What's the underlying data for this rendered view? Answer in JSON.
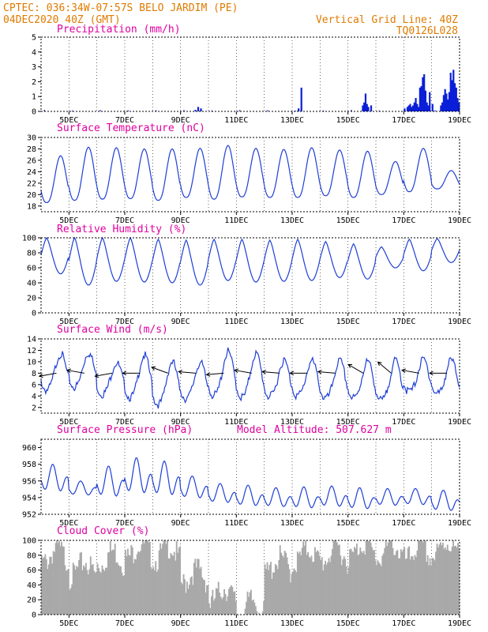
{
  "header": {
    "line1_left": "CPTEC:   036:34W-07:57S  BELO JARDIM (PE)",
    "line2_left": "04DEC2020 40Z (GMT)",
    "line1_right": "Vertical Grid Line: 40Z",
    "line2_right": "TQ0126L028"
  },
  "colors": {
    "header": "#e07b00",
    "title": "#e000a0",
    "series": "#1f3fd6",
    "cloud": "#a9a9a9",
    "bars": "#0a1fd8"
  },
  "chart_data": [
    {
      "id": "precip",
      "type": "bar",
      "title": "Precipitation (mm/h)",
      "ylim": [
        0,
        5
      ],
      "yticks": [
        0,
        1,
        2,
        3,
        4,
        5
      ],
      "x_tick_labels": [
        "5DEC",
        "7DEC",
        "9DEC",
        "11DEC",
        "13DEC",
        "15DEC",
        "17DEC",
        "19DEC"
      ],
      "x_unit": "days since 04DEC2020 00Z",
      "xlim": [
        0,
        15
      ],
      "points": [
        [
          5.5,
          0.1
        ],
        [
          5.6,
          0.3
        ],
        [
          5.7,
          0.2
        ],
        [
          9.3,
          1.6
        ],
        [
          9.2,
          0.2
        ],
        [
          11.5,
          0.4
        ],
        [
          11.55,
          0.6
        ],
        [
          11.6,
          1.2
        ],
        [
          11.65,
          0.5
        ],
        [
          11.7,
          0.3
        ],
        [
          11.8,
          0.4
        ],
        [
          13.0,
          0.2
        ],
        [
          13.1,
          0.3
        ],
        [
          13.15,
          0.4
        ],
        [
          13.2,
          0.5
        ],
        [
          13.25,
          0.3
        ],
        [
          13.3,
          0.4
        ],
        [
          13.35,
          0.6
        ],
        [
          13.4,
          0.9
        ],
        [
          13.45,
          0.5
        ],
        [
          13.5,
          0.3
        ],
        [
          13.55,
          1.6
        ],
        [
          13.6,
          1.7
        ],
        [
          13.65,
          2.3
        ],
        [
          13.7,
          2.5
        ],
        [
          13.75,
          1.4
        ],
        [
          13.8,
          0.6
        ],
        [
          13.85,
          0.4
        ],
        [
          13.9,
          1.3
        ],
        [
          14.0,
          0.5
        ],
        [
          14.3,
          0.4
        ],
        [
          14.35,
          0.6
        ],
        [
          14.4,
          1.1
        ],
        [
          14.45,
          1.5
        ],
        [
          14.5,
          1.2
        ],
        [
          14.55,
          0.8
        ],
        [
          14.6,
          1.3
        ],
        [
          14.65,
          2.6
        ],
        [
          14.7,
          2.1
        ],
        [
          14.75,
          2.8
        ],
        [
          14.8,
          1.9
        ],
        [
          14.85,
          1.6
        ],
        [
          14.9,
          0.9
        ],
        [
          14.95,
          0.6
        ]
      ]
    },
    {
      "id": "temp",
      "type": "line",
      "title": "Surface Temperature (nC)",
      "ylim": [
        17,
        30
      ],
      "yticks": [
        18,
        20,
        22,
        24,
        26,
        28,
        30
      ],
      "x_tick_labels": [
        "5DEC",
        "7DEC",
        "9DEC",
        "11DEC",
        "13DEC",
        "15DEC",
        "17DEC",
        "19DEC"
      ],
      "x_unit": "days since 04DEC2020 00Z",
      "xlim": [
        0,
        15
      ],
      "daily_min": [
        18.6,
        19.0,
        19.2,
        19.3,
        19.0,
        19.5,
        19.2,
        19.6,
        19.5,
        19.5,
        19.8,
        19.5,
        20.0,
        20.5,
        21.0
      ],
      "daily_max": [
        26.8,
        28.3,
        28.2,
        28.0,
        28.0,
        28.1,
        28.6,
        28.1,
        27.9,
        28.2,
        27.8,
        27.6,
        25.8,
        28.1,
        24.2
      ]
    },
    {
      "id": "rh",
      "type": "line",
      "title": "Relative Humidity (%)",
      "ylim": [
        0,
        100
      ],
      "yticks": [
        0,
        20,
        40,
        60,
        80,
        100
      ],
      "x_tick_labels": [
        "5DEC",
        "7DEC",
        "9DEC",
        "11DEC",
        "13DEC",
        "15DEC",
        "17DEC",
        "19DEC"
      ],
      "x_unit": "days since 04DEC2020 00Z",
      "xlim": [
        0,
        15
      ],
      "daily_min": [
        52,
        37,
        42,
        41,
        40,
        37,
        43,
        41,
        42,
        43,
        47,
        45,
        60,
        56,
        67
      ],
      "daily_max": [
        100,
        100,
        100,
        100,
        98,
        97,
        98,
        98,
        97,
        98,
        95,
        92,
        88,
        98,
        99
      ]
    },
    {
      "id": "wind",
      "type": "line",
      "title": "Surface Wind (m/s)",
      "ylim": [
        1,
        14
      ],
      "yticks": [
        2,
        4,
        6,
        8,
        10,
        12,
        14
      ],
      "x_tick_labels": [
        "5DEC",
        "7DEC",
        "9DEC",
        "11DEC",
        "13DEC",
        "15DEC",
        "17DEC",
        "19DEC"
      ],
      "x_unit": "days since 04DEC2020 00Z",
      "xlim": [
        0,
        15
      ],
      "daily_min": [
        5.5,
        6.0,
        4.8,
        4.2,
        3.0,
        4.0,
        4.5,
        4.2,
        4.3,
        4.5,
        4.0,
        4.0,
        3.6,
        5.2,
        4.8
      ],
      "daily_max": [
        11.8,
        12.0,
        10.2,
        11.5,
        10.4,
        10.2,
        12.1,
        11.8,
        10.6,
        10.5,
        10.5,
        10.4,
        10.5,
        10.7,
        10.6
      ],
      "arrows_deg_from": [
        80,
        100,
        80,
        90,
        110,
        95,
        85,
        100,
        95,
        90,
        95,
        120,
        130,
        100,
        90
      ]
    },
    {
      "id": "pres",
      "type": "line",
      "title": "Surface Pressure (hPa)",
      "annotation": "Model Altitude: 507.627 m",
      "ylim": [
        952,
        961
      ],
      "yticks": [
        952,
        954,
        956,
        958,
        960
      ],
      "x_tick_labels": [
        "5DEC",
        "7DEC",
        "9DEC",
        "11DEC",
        "13DEC",
        "15DEC",
        "17DEC",
        "19DEC"
      ],
      "x_unit": "days since 04DEC2020 00Z",
      "xlim": [
        0,
        15
      ],
      "daily_min": [
        954.2,
        954.0,
        953.5,
        953.8,
        953.6,
        953.5,
        953.0,
        952.6,
        952.5,
        952.3,
        952.5,
        952.2,
        952.7,
        952.8,
        952.0
      ],
      "daily_max": [
        958.0,
        956.0,
        957.8,
        958.8,
        958.4,
        956.6,
        955.7,
        955.5,
        955.2,
        955.3,
        955.4,
        955.2,
        955.1,
        955.1,
        954.9
      ]
    },
    {
      "id": "cloud",
      "type": "area",
      "title": "Cloud Cover (%)",
      "ylim": [
        0,
        100
      ],
      "yticks": [
        0,
        20,
        40,
        60,
        80,
        100
      ],
      "x_tick_labels": [
        "5DEC",
        "7DEC",
        "9DEC",
        "11DEC",
        "13DEC",
        "15DEC",
        "17DEC",
        "19DEC"
      ],
      "x_unit": "days since 04DEC2020 00Z",
      "xlim": [
        0,
        15
      ],
      "daily_mean": [
        88,
        70,
        85,
        95,
        92,
        60,
        35,
        18,
        75,
        88,
        90,
        96,
        94,
        92,
        97
      ]
    }
  ]
}
